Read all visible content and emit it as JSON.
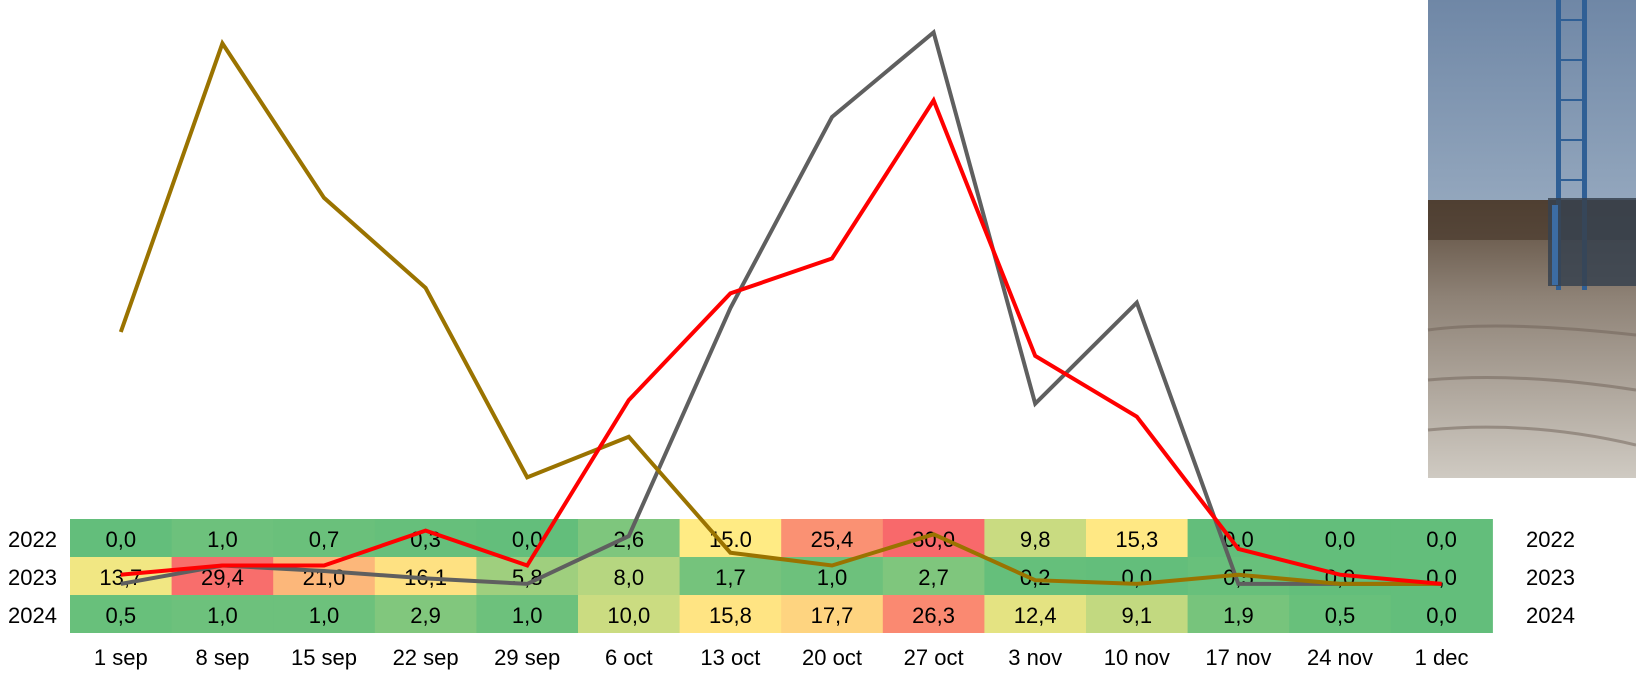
{
  "chart_data": {
    "type": "line",
    "categories": [
      "1 sep",
      "8 sep",
      "15 sep",
      "22 sep",
      "29 sep",
      "6 oct",
      "13 oct",
      "20 oct",
      "27 oct",
      "3 nov",
      "10 nov",
      "17 nov",
      "24 nov",
      "1 dec"
    ],
    "series": [
      {
        "name": "2022",
        "color": "#5f5f5f",
        "values": [
          0.0,
          1.0,
          0.7,
          0.3,
          0.0,
          2.6,
          15.0,
          25.4,
          30.0,
          9.8,
          15.3,
          0.0,
          0.0,
          0.0
        ],
        "labels": [
          "0,0",
          "1,0",
          "0,7",
          "0,3",
          "0,0",
          "2,6",
          "15.0",
          "25,4",
          "30,0",
          "9,8",
          "15,3",
          "0,0",
          "0,0",
          "0,0"
        ]
      },
      {
        "name": "2023",
        "color": "#9a7300",
        "values": [
          13.7,
          29.4,
          21.0,
          16.1,
          5.8,
          8.0,
          1.7,
          1.0,
          2.7,
          0.2,
          0.0,
          0.5,
          0.0,
          0.0
        ],
        "labels": [
          "13,7",
          "29,4",
          "21,0",
          "16,1",
          "5,8",
          "8,0",
          "1,7",
          "1,0",
          "2,7",
          "0,2",
          "0,0",
          "0,5",
          "0,0",
          "0,0"
        ]
      },
      {
        "name": "2024",
        "color": "#ff0000",
        "values": [
          0.5,
          1.0,
          1.0,
          2.9,
          1.0,
          10.0,
          15.8,
          17.7,
          26.3,
          12.4,
          9.1,
          1.9,
          0.5,
          0.0
        ],
        "labels": [
          "0,5",
          "1,0",
          "1,0",
          "2,9",
          "1,0",
          "10,0",
          "15,8",
          "17,7",
          "26,3",
          "12,4",
          "9,1",
          "1,9",
          "0,5",
          "0,0"
        ]
      }
    ],
    "row_labels": [
      "2022",
      "2023",
      "2024"
    ],
    "ylim": [
      -1.8,
      31
    ],
    "heatmap_colors": {
      "low": "#63be7b",
      "mid": "#ffeb84",
      "high": "#f8696b"
    },
    "grid": false,
    "photo": {
      "description_icon": "photo-tower-field"
    }
  }
}
